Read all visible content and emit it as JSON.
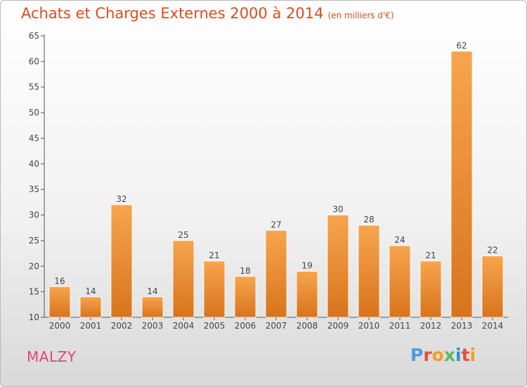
{
  "header": {
    "title": "Achats et Charges Externes 2000 à 2014",
    "unit": "(en milliers d'€)"
  },
  "footer": {
    "town": "MALZY",
    "logo": "Proxiti",
    "logo_colors": [
      "#4a9ee0",
      "#e8503a",
      "#f0a020",
      "#5cb85c",
      "#2f8fd6",
      "#e8503a",
      "#f0a020"
    ]
  },
  "colors": {
    "bar_top": "#f7a54e",
    "bar_bottom": "#d8741c",
    "axis": "#555555",
    "grid": "#d0d0d0",
    "text": "#444444",
    "title": "#e04a1e"
  },
  "chart_data": {
    "type": "bar",
    "title": "Achats et Charges Externes 2000 à 2014",
    "subtitle": "(en milliers d'€)",
    "xlabel": "",
    "ylabel": "",
    "categories": [
      "2000",
      "2001",
      "2002",
      "2003",
      "2004",
      "2005",
      "2006",
      "2007",
      "2008",
      "2009",
      "2010",
      "2011",
      "2012",
      "2013",
      "2014"
    ],
    "values": [
      16,
      14,
      32,
      14,
      25,
      21,
      18,
      27,
      19,
      30,
      28,
      24,
      21,
      62,
      22
    ],
    "ylim": [
      10,
      65
    ],
    "yticks": [
      10,
      15,
      20,
      25,
      30,
      35,
      40,
      45,
      50,
      55,
      60,
      65
    ],
    "grid": false,
    "data_labels": true
  }
}
